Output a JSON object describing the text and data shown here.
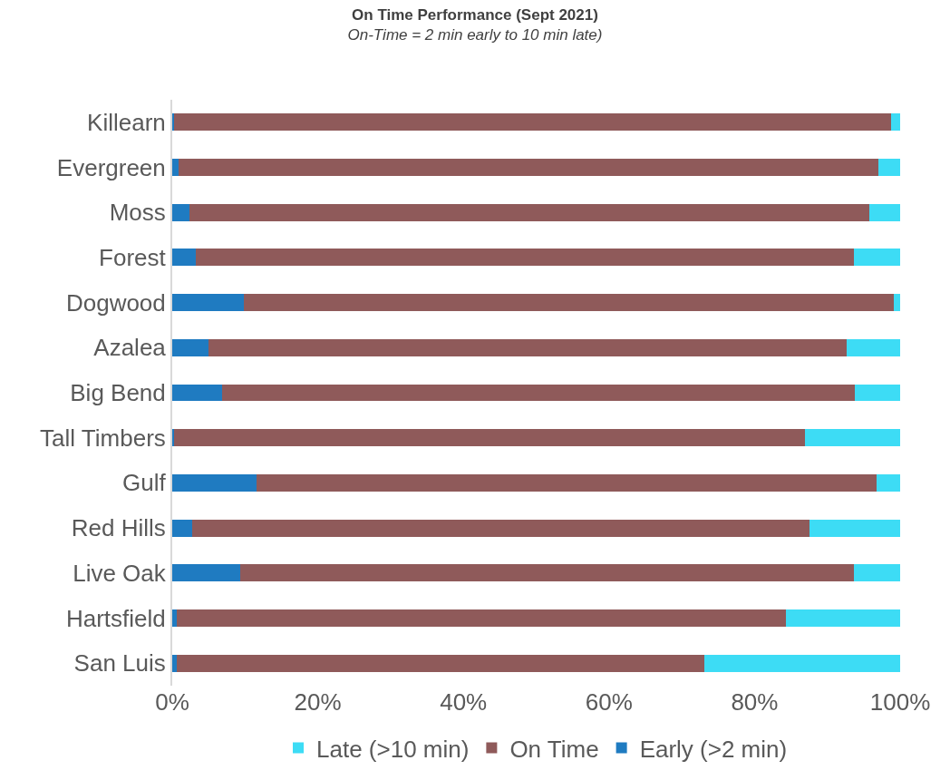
{
  "chart_data": {
    "type": "bar",
    "orientation": "horizontal",
    "stacked": true,
    "title": "On Time Performance (Sept 2021)",
    "subtitle": "On-Time = 2 min early to 10 min late)",
    "categories": [
      "Killearn",
      "Evergreen",
      "Moss",
      "Forest",
      "Dogwood",
      "Azalea",
      "Big Bend",
      "Tall Timbers",
      "Gulf",
      "Red Hills",
      "Live Oak",
      "Hartsfield",
      "San Luis"
    ],
    "series": [
      {
        "name": "Early (>2 min)",
        "color": "#1f7bc1",
        "values": [
          0.3,
          0.9,
          2.4,
          3.2,
          9.8,
          5.0,
          6.8,
          0.3,
          11.6,
          2.8,
          9.3,
          0.6,
          0.6
        ]
      },
      {
        "name": "On Time",
        "color": "#8f5a5a",
        "values": [
          98.5,
          96.1,
          93.4,
          90.5,
          89.3,
          87.7,
          87.0,
          86.6,
          85.2,
          84.7,
          84.3,
          83.7,
          72.5
        ]
      },
      {
        "name": "Late (>10 min)",
        "color": "#3ddcf5",
        "values": [
          1.2,
          3.0,
          4.2,
          6.3,
          0.9,
          7.3,
          6.2,
          13.1,
          3.2,
          12.5,
          6.4,
          15.7,
          26.9
        ]
      }
    ],
    "xlim": [
      0,
      100
    ],
    "xticks": [
      {
        "value": 0,
        "label": "0%"
      },
      {
        "value": 20,
        "label": "20%"
      },
      {
        "value": 40,
        "label": "40%"
      },
      {
        "value": 60,
        "label": "60%"
      },
      {
        "value": 80,
        "label": "80%"
      },
      {
        "value": 100,
        "label": "100%"
      }
    ],
    "grid": false,
    "legend": "bottom"
  }
}
